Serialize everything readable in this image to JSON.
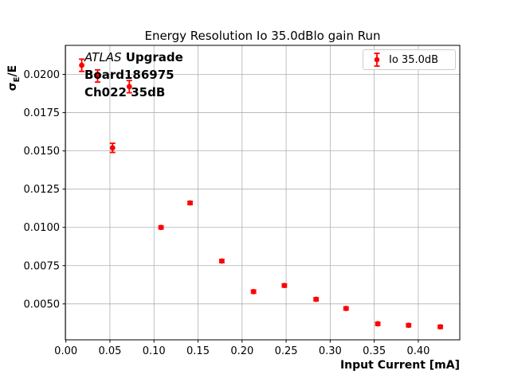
{
  "figure": {
    "title": "Energy Resolution Io 35.0dBlo gain Run",
    "xlabel": "Input Current [mA]",
    "ylabel_sigma": "σ",
    "ylabel_sub": "E",
    "ylabel_rest": "/E",
    "annotation": {
      "experiment": "ATLAS",
      "experiment_suffix": "Upgrade",
      "board": "Board186975",
      "channel": "Ch022 35dB"
    },
    "legend": {
      "label": "Io 35.0dB",
      "marker_color": "#ff0000"
    }
  },
  "chart_data": {
    "type": "scatter",
    "title": "Energy Resolution Io 35.0dBlo gain Run",
    "xlabel": "Input Current [mA]",
    "ylabel": "σ_E/E",
    "grid": true,
    "grid_color": "#b0b0b0",
    "legend_position": "upper right",
    "xlim": [
      -0.0006,
      0.4471
    ],
    "ylim": [
      0.00265,
      0.0219
    ],
    "xticks": [
      0.0,
      0.05,
      0.1,
      0.15,
      0.2,
      0.25,
      0.3,
      0.35,
      0.4
    ],
    "xtick_labels": [
      "0.00",
      "0.05",
      "0.10",
      "0.15",
      "0.20",
      "0.25",
      "0.30",
      "0.35",
      "0.40"
    ],
    "yticks": [
      0.005,
      0.0075,
      0.01,
      0.0125,
      0.015,
      0.0175,
      0.02
    ],
    "ytick_labels": [
      "0.0050",
      "0.0075",
      "0.0100",
      "0.0125",
      "0.0150",
      "0.0175",
      "0.0200"
    ],
    "series": [
      {
        "name": "Io 35.0dB",
        "color": "#ff0000",
        "marker": "circle",
        "x": [
          0.018,
          0.036,
          0.053,
          0.072,
          0.108,
          0.141,
          0.177,
          0.213,
          0.248,
          0.284,
          0.318,
          0.354,
          0.389,
          0.425
        ],
        "y": [
          0.0206,
          0.0199,
          0.0152,
          0.0192,
          0.01,
          0.0116,
          0.0078,
          0.0058,
          0.0062,
          0.0053,
          0.0047,
          0.0037,
          0.0036,
          0.0035
        ],
        "yerr": [
          0.0004,
          0.0004,
          0.0003,
          0.0004,
          0.0001,
          0.0001,
          0.0001,
          0.0001,
          0.0001,
          0.0001,
          0.0001,
          0.0001,
          0.0001,
          0.0001
        ]
      }
    ]
  }
}
